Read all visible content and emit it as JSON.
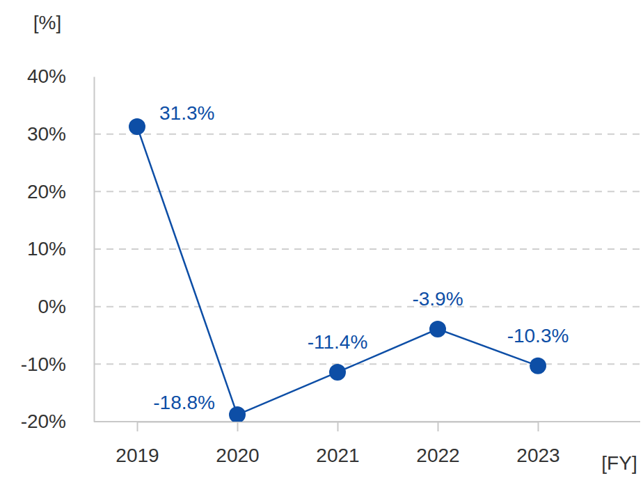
{
  "chart_data": {
    "type": "line",
    "y_label": "[%]",
    "x_label": "[FY]",
    "categories": [
      "2019",
      "2020",
      "2021",
      "2022",
      "2023"
    ],
    "values": [
      31.3,
      -18.8,
      -11.4,
      -3.9,
      -10.3
    ],
    "value_labels": [
      "31.3%",
      "-18.8%",
      "-11.4%",
      "-3.9%",
      "-10.3%"
    ],
    "color": "#0d4ea6",
    "marker": "circle",
    "ylim": [
      -20,
      40
    ],
    "yticks": [
      {
        "value": -20,
        "label": "-20%"
      },
      {
        "value": -10,
        "label": "-10%"
      },
      {
        "value": 0,
        "label": "0%"
      },
      {
        "value": 10,
        "label": "10%"
      },
      {
        "value": 20,
        "label": "20%"
      },
      {
        "value": 30,
        "label": "30%"
      },
      {
        "value": 40,
        "label": "40%"
      }
    ],
    "grid": true,
    "data_labels": true
  }
}
